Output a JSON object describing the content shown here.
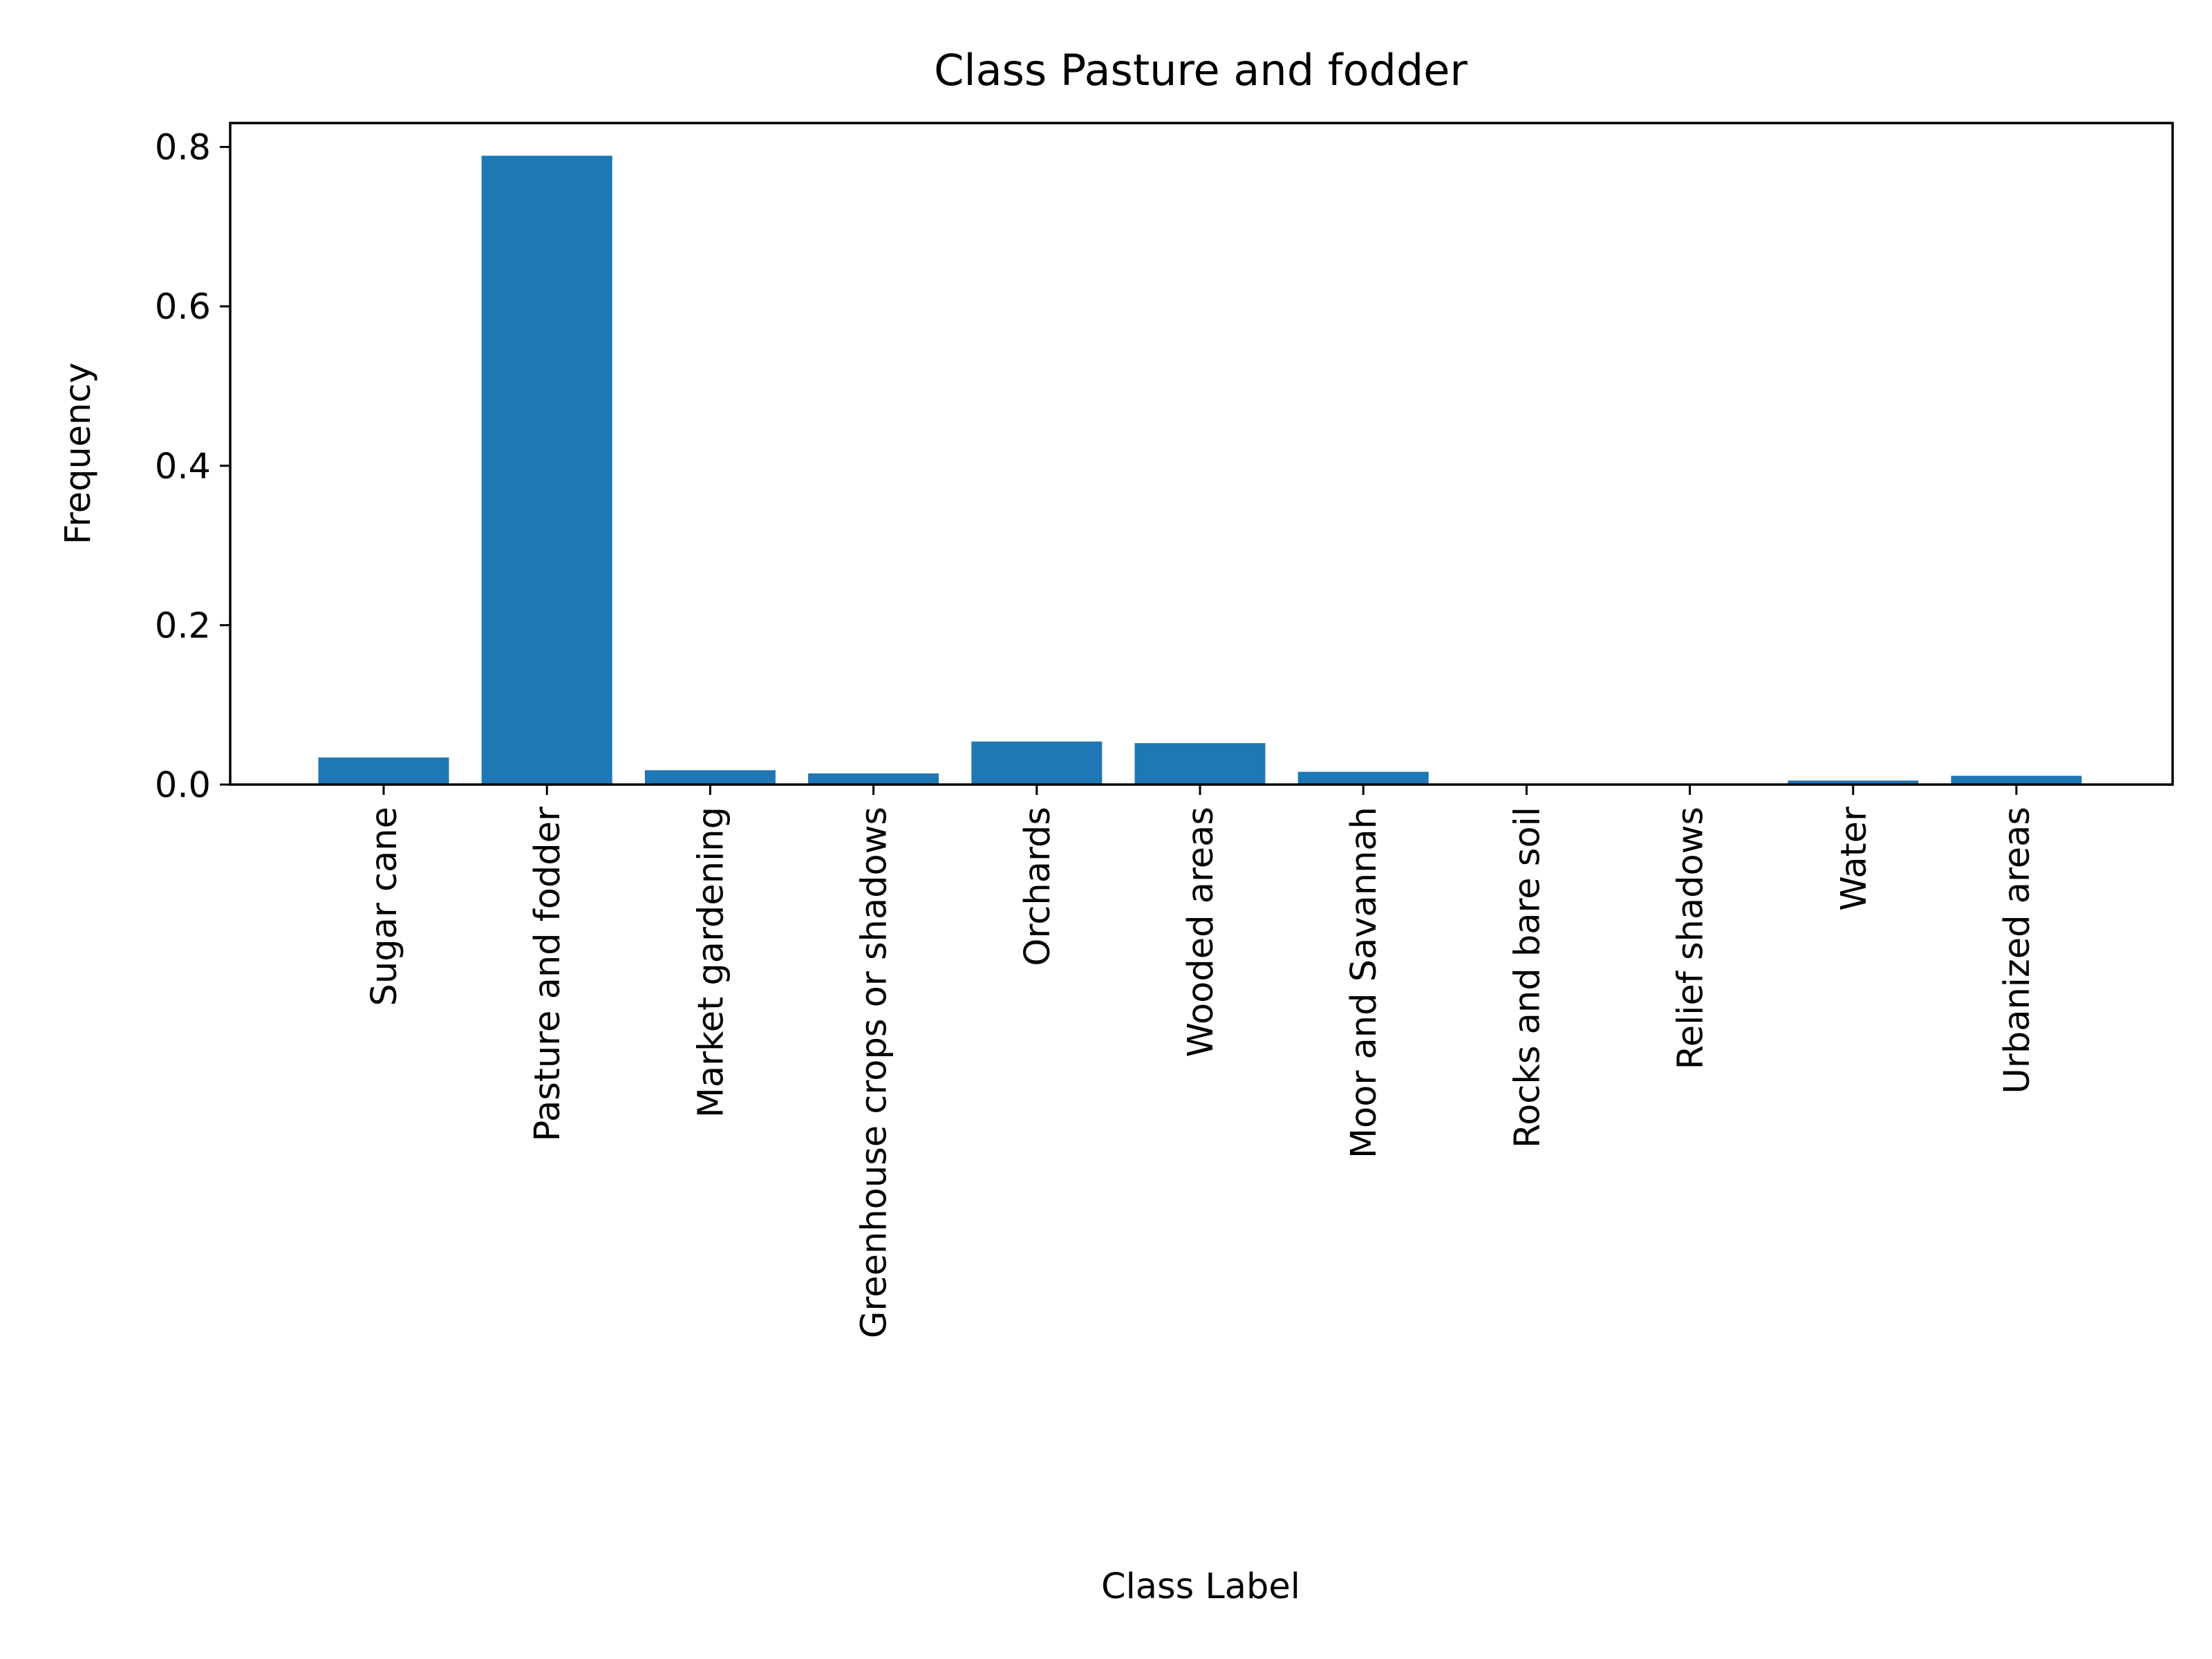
{
  "chart_data": {
    "type": "bar",
    "title": "Class Pasture and fodder",
    "xlabel": "Class Label",
    "ylabel": "Frequency",
    "categories": [
      "Sugar cane",
      "Pasture and fodder",
      "Market gardening",
      "Greenhouse crops or shadows",
      "Orchards",
      "Wooded areas",
      "Moor and Savannah",
      "Rocks and bare soil",
      "Relief shadows",
      "Water",
      "Urbanized areas"
    ],
    "values": [
      0.034,
      0.789,
      0.018,
      0.014,
      0.054,
      0.052,
      0.016,
      0.0,
      0.0,
      0.005,
      0.011
    ],
    "ylim": [
      0,
      0.83
    ],
    "yticks": [
      "0.0",
      "0.2",
      "0.4",
      "0.6",
      "0.8"
    ],
    "grid": false,
    "bar_color": "#1f77b4"
  }
}
